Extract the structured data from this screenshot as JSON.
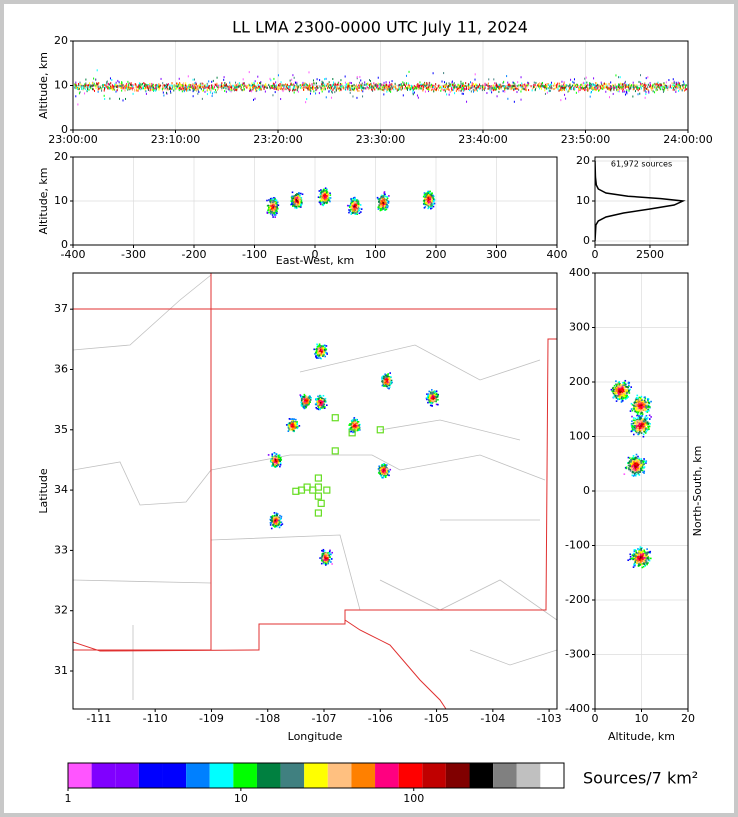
{
  "chart_data": [
    {
      "type": "density",
      "title": "LL LMA 2300-0000 UTC July 11, 2024",
      "ylabel": "Altitude, km",
      "xlim": [
        0,
        60
      ],
      "xticks": [
        {
          "value": 0,
          "label": "23:00:00"
        },
        {
          "value": 10,
          "label": "23:10:00"
        },
        {
          "value": 20,
          "label": "23:20:00"
        },
        {
          "value": 30,
          "label": "23:30:00"
        },
        {
          "value": 40,
          "label": "23:40:00"
        },
        {
          "value": 50,
          "label": "23:50:00"
        },
        {
          "value": 60,
          "label": "24:00:00"
        }
      ],
      "ylim": [
        0,
        20
      ],
      "yticks": [
        0,
        10,
        20
      ],
      "grid": true
    },
    {
      "type": "density",
      "xlabel": "East-West, km",
      "ylabel": "Altitude, km",
      "xlim": [
        -400,
        400
      ],
      "xticks": [
        -400,
        -300,
        -200,
        -100,
        0,
        100,
        200,
        300,
        400
      ],
      "ylim": [
        0,
        20
      ],
      "yticks": [
        0,
        10,
        20
      ],
      "grid": true
    },
    {
      "type": "line",
      "annotation": "61,972 sources",
      "color": "#000000",
      "x": [
        0,
        40,
        150,
        500,
        1300,
        2500,
        3600,
        4000,
        3000,
        1500,
        500,
        150,
        60,
        20,
        0
      ],
      "y": [
        0,
        4,
        5,
        6,
        7,
        8,
        9,
        10,
        10.6,
        11.2,
        12,
        13,
        14,
        16,
        20
      ],
      "xlim": [
        0,
        4230
      ],
      "xticks": [
        0,
        2500
      ],
      "ylim": [
        -1,
        21
      ],
      "yticks": [
        0,
        10,
        20
      ],
      "grid": true
    },
    {
      "type": "scatter",
      "xlabel": "Longitude",
      "ylabel": "Latitude",
      "color": "#66dd22",
      "x": [
        -106.8,
        -106.0,
        -106.5,
        -106.8,
        -107.1,
        -107.3,
        -107.1,
        -107.4,
        -107.2,
        -106.95,
        -107.1,
        -107.05,
        -107.1,
        -107.5
      ],
      "y": [
        35.2,
        35.0,
        34.95,
        34.65,
        34.2,
        34.05,
        34.05,
        34.0,
        34.0,
        34.0,
        33.9,
        33.78,
        33.62,
        33.98
      ],
      "xlim": [
        -111.46,
        -102.86
      ],
      "xticks": [
        -111,
        -110,
        -109,
        -108,
        -107,
        -106,
        -105,
        -104,
        -103
      ],
      "ylim": [
        30.37,
        37.6
      ],
      "yticks": [
        31,
        32,
        33,
        34,
        35,
        36,
        37
      ],
      "grid": false
    },
    {
      "type": "density",
      "xlabel": "Altitude, km",
      "ylabel": "North-South, km",
      "xlim": [
        0,
        20
      ],
      "xticks": [
        0,
        10,
        20
      ],
      "ylim": [
        -400,
        400
      ],
      "yticks": [
        -400,
        -300,
        -200,
        -100,
        0,
        100,
        200,
        300,
        400
      ],
      "grid": true
    },
    {
      "type": "colorbar",
      "label": "Sources/7 km²",
      "log_scale": true,
      "xlim": [
        1,
        740
      ],
      "xticks": [
        1,
        10,
        100
      ],
      "colors": [
        "#ff55ff",
        "#8000ff",
        "#8000ff",
        "#0000ff",
        "#0000ff",
        "#0080ff",
        "#00ffff",
        "#00ff00",
        "#008040",
        "#408080",
        "#ffff00",
        "#ffc080",
        "#ff8000",
        "#ff0080",
        "#ff0000",
        "#c00000",
        "#800000",
        "#000000",
        "#808080",
        "#c0c0c0",
        "#ffffff"
      ]
    }
  ]
}
